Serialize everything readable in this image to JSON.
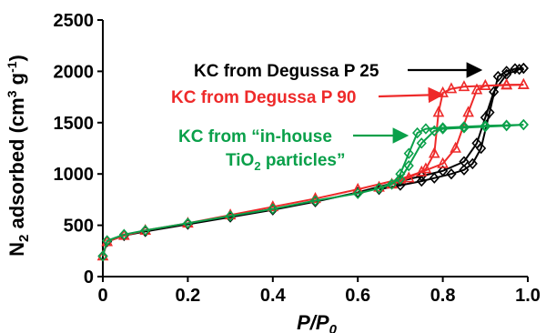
{
  "chart_data": {
    "type": "line",
    "xlabel": "P/P0",
    "ylabel": "N2 adsorbed (cm3 g-1)",
    "xlim": [
      0,
      1.0
    ],
    "ylim": [
      0,
      2500
    ],
    "x_ticks": [
      "0",
      "0.2",
      "0.4",
      "0.6",
      "0.8",
      "1.0"
    ],
    "y_ticks": [
      "0",
      "500",
      "1000",
      "1500",
      "2000",
      "2500"
    ],
    "grid": false,
    "colors": {
      "black": "#000000",
      "red": "#ee2a2a",
      "green": "#0aa04a"
    },
    "annotations": [
      {
        "id": "p25",
        "text": "KC from Degussa P 25",
        "color": "#000000",
        "marker": "diamond"
      },
      {
        "id": "p90",
        "text": "KC from Degussa P 90",
        "color": "#ee2a2a",
        "marker": "triangle"
      },
      {
        "id": "inhouse",
        "line1": "KC from “in-house",
        "line2_a": "TiO",
        "line2_sub": "2",
        "line2_b": " particles”",
        "color": "#0aa04a",
        "marker": "diamond"
      }
    ],
    "series": [
      {
        "id": "p25",
        "color": "#000000",
        "marker": "diamond",
        "adsorption": {
          "x": [
            0.0,
            0.01,
            0.05,
            0.1,
            0.2,
            0.3,
            0.4,
            0.5,
            0.6,
            0.7,
            0.75,
            0.8,
            0.85,
            0.88,
            0.9,
            0.92,
            0.95,
            0.98,
            0.99
          ],
          "y": [
            200,
            340,
            400,
            440,
            510,
            580,
            650,
            730,
            820,
            930,
            980,
            1030,
            1120,
            1300,
            1550,
            1800,
            1970,
            2020,
            2030
          ]
        },
        "desorption": {
          "x": [
            0.99,
            0.97,
            0.95,
            0.93,
            0.91,
            0.89,
            0.87,
            0.85,
            0.82,
            0.78,
            0.75,
            0.7,
            0.65
          ],
          "y": [
            2030,
            2025,
            2000,
            1950,
            1600,
            1250,
            1100,
            1040,
            1000,
            960,
            930,
            890,
            850
          ]
        }
      },
      {
        "id": "p90",
        "color": "#ee2a2a",
        "marker": "triangle",
        "adsorption": {
          "x": [
            0.0,
            0.01,
            0.05,
            0.1,
            0.2,
            0.3,
            0.4,
            0.5,
            0.6,
            0.7,
            0.75,
            0.8,
            0.83,
            0.86,
            0.88,
            0.9,
            0.95,
            0.99
          ],
          "y": [
            200,
            340,
            400,
            450,
            520,
            600,
            680,
            760,
            850,
            950,
            1020,
            1100,
            1250,
            1600,
            1820,
            1860,
            1870,
            1870
          ]
        },
        "desorption": {
          "x": [
            0.99,
            0.95,
            0.9,
            0.85,
            0.82,
            0.8,
            0.79,
            0.78,
            0.76,
            0.72,
            0.68,
            0.65
          ],
          "y": [
            1870,
            1865,
            1860,
            1850,
            1830,
            1790,
            1600,
            1200,
            1050,
            960,
            900,
            870
          ]
        }
      },
      {
        "id": "inhouse",
        "color": "#0aa04a",
        "marker": "diamond",
        "adsorption": {
          "x": [
            0.0,
            0.01,
            0.05,
            0.1,
            0.2,
            0.3,
            0.4,
            0.5,
            0.6,
            0.65,
            0.7,
            0.72,
            0.75,
            0.78,
            0.8,
            0.85,
            0.9,
            0.95,
            0.99
          ],
          "y": [
            200,
            350,
            410,
            450,
            520,
            590,
            660,
            740,
            810,
            860,
            950,
            1080,
            1300,
            1420,
            1440,
            1450,
            1460,
            1470,
            1480
          ]
        },
        "desorption": {
          "x": [
            0.99,
            0.95,
            0.9,
            0.85,
            0.8,
            0.76,
            0.74,
            0.72,
            0.7,
            0.68,
            0.65
          ],
          "y": [
            1480,
            1475,
            1470,
            1460,
            1450,
            1440,
            1400,
            1200,
            1000,
            900,
            860
          ]
        }
      }
    ]
  }
}
